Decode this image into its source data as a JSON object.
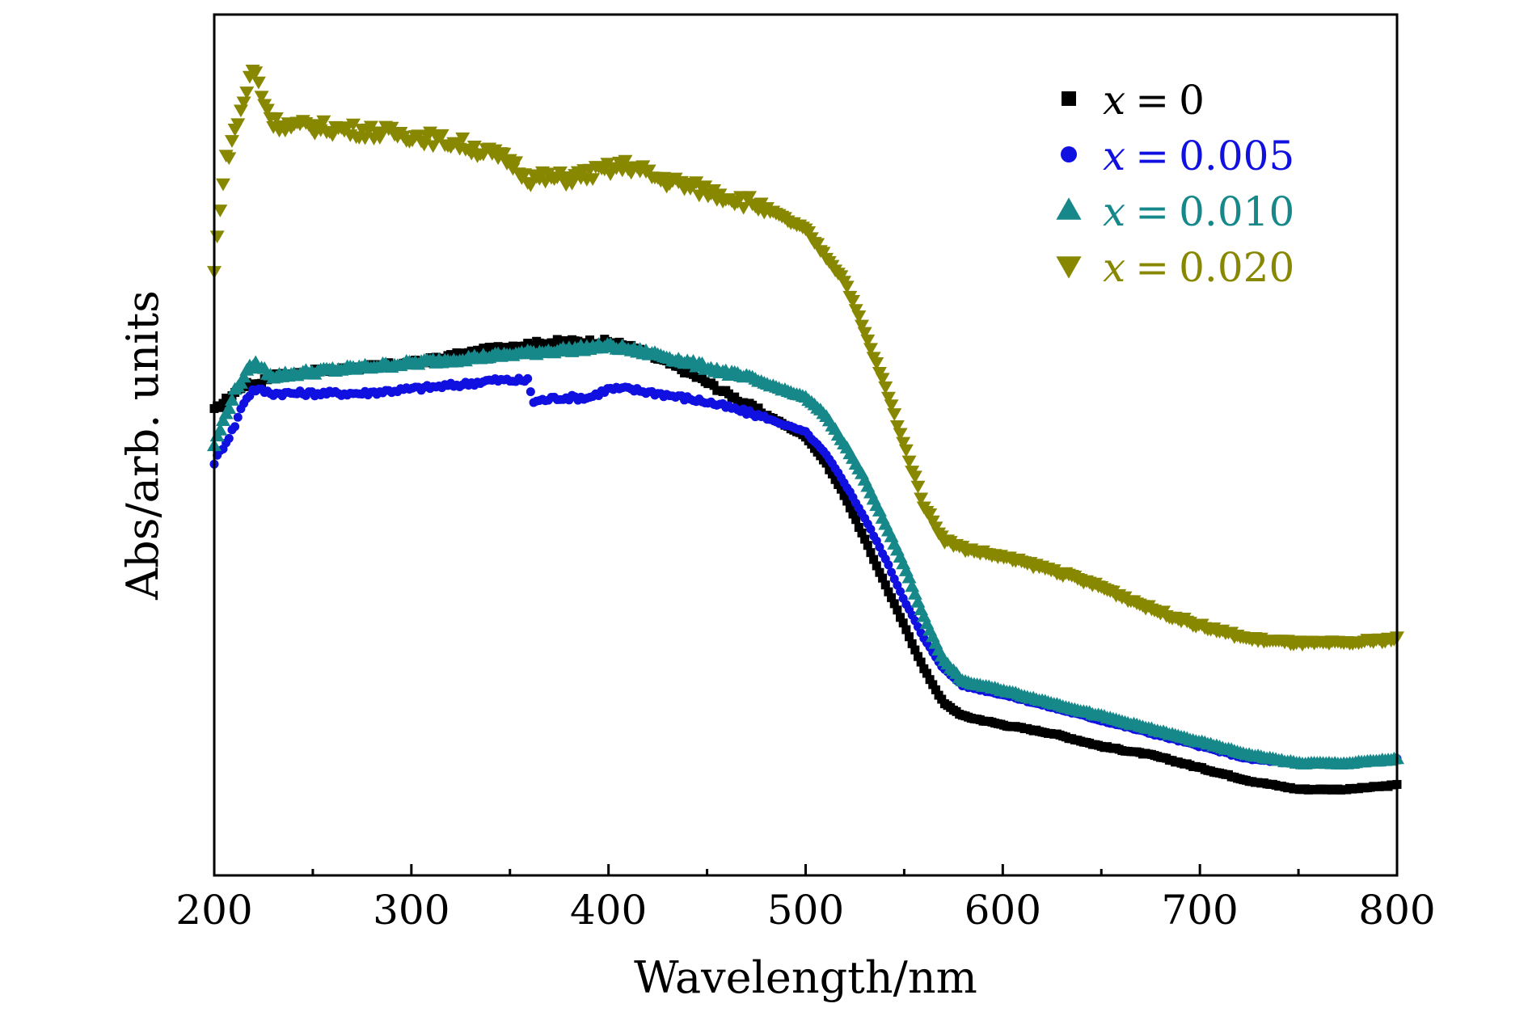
{
  "chart_data": {
    "type": "scatter",
    "title": "",
    "xlabel": "Wavelength/nm",
    "ylabel": "Abs/arb. units",
    "xlim": [
      200,
      800
    ],
    "ylim": [
      0,
      1.0
    ],
    "x_ticks": [
      "200",
      "300",
      "400",
      "500",
      "600",
      "700",
      "800"
    ],
    "y_ticks_shown": false,
    "grid": false,
    "legend_position": "top-right",
    "series": [
      {
        "name": "x = 0",
        "legend": {
          "var": "x",
          "eq": "=",
          "val": "0"
        },
        "marker": "square",
        "color": "#000000",
        "x": [
          200,
          205,
          210,
          215,
          220,
          230,
          250,
          275,
          300,
          325,
          350,
          375,
          390,
          400,
          410,
          425,
          440,
          460,
          480,
          500,
          510,
          520,
          530,
          540,
          550,
          560,
          570,
          580,
          590,
          600,
          625,
          650,
          675,
          700,
          725,
          750,
          775,
          800
        ],
        "y": [
          0.54,
          0.55,
          0.56,
          0.57,
          0.57,
          0.58,
          0.585,
          0.59,
          0.595,
          0.605,
          0.615,
          0.62,
          0.62,
          0.62,
          0.615,
          0.6,
          0.585,
          0.56,
          0.535,
          0.51,
          0.48,
          0.44,
          0.39,
          0.34,
          0.29,
          0.24,
          0.2,
          0.185,
          0.18,
          0.175,
          0.165,
          0.15,
          0.14,
          0.125,
          0.11,
          0.1,
          0.1,
          0.105
        ]
      },
      {
        "name": "x = 0.005",
        "legend": {
          "var": "x",
          "eq": "=",
          "val": "0.005"
        },
        "marker": "circle",
        "color": "#1010e0",
        "x": [
          200,
          205,
          210,
          215,
          220,
          230,
          250,
          275,
          300,
          325,
          340,
          355,
          360,
          361,
          375,
          390,
          400,
          410,
          425,
          450,
          475,
          500,
          510,
          520,
          530,
          540,
          550,
          560,
          570,
          580,
          600,
          625,
          650,
          675,
          700,
          725,
          750,
          775,
          800
        ],
        "y": [
          0.48,
          0.5,
          0.52,
          0.55,
          0.565,
          0.56,
          0.56,
          0.56,
          0.565,
          0.57,
          0.575,
          0.575,
          0.575,
          0.55,
          0.555,
          0.555,
          0.565,
          0.565,
          0.56,
          0.55,
          0.535,
          0.515,
          0.49,
          0.455,
          0.415,
          0.37,
          0.32,
          0.275,
          0.24,
          0.22,
          0.21,
          0.195,
          0.18,
          0.165,
          0.15,
          0.135,
          0.13,
          0.13,
          0.135
        ]
      },
      {
        "name": "x = 0.010",
        "legend": {
          "var": "x",
          "eq": "=",
          "val": "0.010"
        },
        "marker": "triangle-up",
        "color": "#16888a",
        "x": [
          200,
          205,
          210,
          215,
          220,
          230,
          250,
          275,
          300,
          325,
          350,
          375,
          400,
          425,
          450,
          475,
          500,
          510,
          520,
          530,
          540,
          550,
          560,
          570,
          580,
          600,
          625,
          650,
          675,
          700,
          725,
          750,
          775,
          800
        ],
        "y": [
          0.5,
          0.53,
          0.56,
          0.58,
          0.595,
          0.58,
          0.585,
          0.59,
          0.595,
          0.6,
          0.605,
          0.61,
          0.615,
          0.605,
          0.59,
          0.575,
          0.555,
          0.535,
          0.5,
          0.46,
          0.41,
          0.36,
          0.3,
          0.25,
          0.225,
          0.215,
          0.2,
          0.185,
          0.17,
          0.155,
          0.14,
          0.13,
          0.13,
          0.135
        ]
      },
      {
        "name": "x = 0.020",
        "legend": {
          "var": "x",
          "eq": "=",
          "val": "0.020"
        },
        "marker": "triangle-down",
        "color": "#888800",
        "x": [
          200,
          203,
          206,
          210,
          215,
          220,
          225,
          230,
          240,
          250,
          275,
          300,
          325,
          350,
          360,
          370,
          380,
          390,
          400,
          410,
          425,
          450,
          475,
          500,
          510,
          520,
          530,
          540,
          550,
          560,
          570,
          580,
          600,
          625,
          650,
          675,
          700,
          725,
          750,
          775,
          800
        ],
        "y": [
          0.7,
          0.78,
          0.83,
          0.86,
          0.9,
          0.94,
          0.9,
          0.875,
          0.87,
          0.87,
          0.865,
          0.86,
          0.85,
          0.83,
          0.81,
          0.81,
          0.81,
          0.815,
          0.82,
          0.825,
          0.81,
          0.795,
          0.78,
          0.75,
          0.72,
          0.69,
          0.63,
          0.57,
          0.5,
          0.43,
          0.39,
          0.38,
          0.37,
          0.355,
          0.335,
          0.31,
          0.29,
          0.275,
          0.27,
          0.27,
          0.275
        ]
      }
    ]
  }
}
